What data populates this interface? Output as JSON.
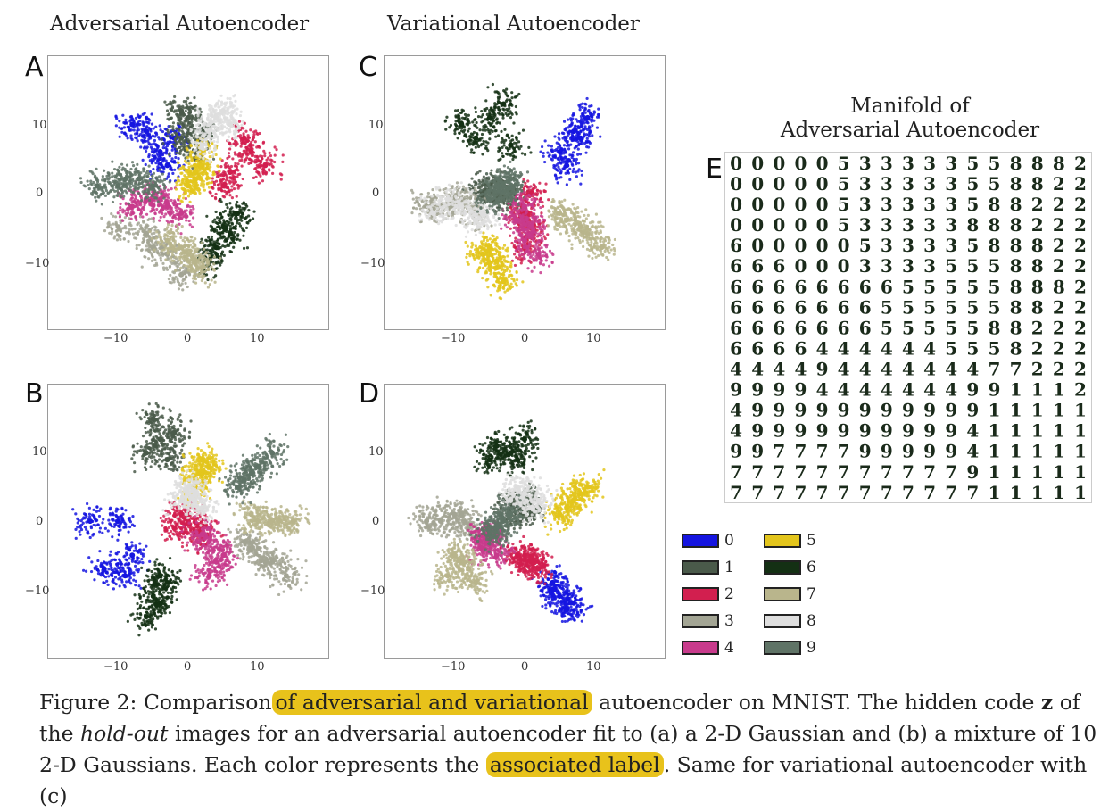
{
  "titles": {
    "adversarial": "Adversarial Autoencoder",
    "variational": "Variational Autoencoder",
    "manifold_line1": "Manifold of",
    "manifold_line2": "Adversarial Autoencoder"
  },
  "panels": {
    "A": "A",
    "B": "B",
    "C": "C",
    "D": "D",
    "E": "E"
  },
  "ticks": {
    "y": [
      "10",
      "0",
      "−10"
    ],
    "x": [
      "−10",
      "0",
      "10"
    ]
  },
  "legend": [
    {
      "label": "0",
      "color": "#1515e0"
    },
    {
      "label": "1",
      "color": "#4a5a4a"
    },
    {
      "label": "2",
      "color": "#d21f4f"
    },
    {
      "label": "3",
      "color": "#a3a594"
    },
    {
      "label": "4",
      "color": "#c83b8c"
    },
    {
      "label": "5",
      "color": "#e3c51c"
    },
    {
      "label": "6",
      "color": "#143014"
    },
    {
      "label": "7",
      "color": "#b9b58c"
    },
    {
      "label": "8",
      "color": "#dedede"
    },
    {
      "label": "9",
      "color": "#5f7366"
    }
  ],
  "manifold_rows": [
    "00000533333558882",
    "00000533333558822",
    "00000533333588222",
    "00000533333888222",
    "60000053333588822",
    "66600033335558822",
    "66666666555558882",
    "66666665555558822",
    "66666665555588222",
    "66664444445558222",
    "44449444444477222",
    "99994444444991112",
    "49999999999911111",
    "49999999999411111",
    "99777799999411111",
    "77777777777911111",
    "77777777777711111"
  ],
  "caption": {
    "p1": "Figure 2: Comparison",
    "h1": "of adversarial and variational",
    "p2": " autoencoder on MNIST. The hidden code ",
    "z": "z",
    "p3": " of the ",
    "holdout": "hold-out",
    "p4": " images for an adversarial autoencoder fit to (a) a 2-D Gaussian and (b) a mixture of 10 2-D Gaussians. Each color represents the ",
    "h2": "associated label",
    "p5": ". Same for variational autoencoder with (c)"
  },
  "chart_data": [
    {
      "type": "scatter",
      "panel": "A",
      "title": "Adversarial Autoencoder",
      "xlim": [
        -20,
        20
      ],
      "ylim": [
        -20,
        20
      ],
      "xticks": [
        -10,
        0,
        10
      ],
      "yticks": [
        -10,
        0,
        10
      ],
      "series": [
        {
          "name": "0",
          "color": "#1515e0",
          "x": [
            -4,
            -6,
            -3,
            -8,
            -2
          ],
          "y": [
            6,
            9,
            4,
            10,
            8
          ]
        },
        {
          "name": "1",
          "color": "#4a5a4a",
          "x": [
            -1,
            0,
            1,
            2,
            -1
          ],
          "y": [
            8,
            11,
            6,
            9,
            12
          ]
        },
        {
          "name": "2",
          "color": "#d21f4f",
          "x": [
            6,
            9,
            5,
            11,
            8
          ],
          "y": [
            3,
            6,
            1,
            4,
            8
          ]
        },
        {
          "name": "3",
          "color": "#a3a594",
          "x": [
            -6,
            -3,
            -10,
            -1,
            -5
          ],
          "y": [
            -6,
            -9,
            -5,
            -12,
            -8
          ]
        },
        {
          "name": "4",
          "color": "#c83b8c",
          "x": [
            -3,
            -6,
            -1,
            -8,
            -4
          ],
          "y": [
            -2,
            -1,
            -3,
            -2,
            -1
          ]
        },
        {
          "name": "5",
          "color": "#e3c51c",
          "x": [
            1,
            2,
            0,
            2,
            1
          ],
          "y": [
            2,
            4,
            1,
            6,
            3
          ]
        },
        {
          "name": "6",
          "color": "#143014",
          "x": [
            5,
            4,
            7,
            3,
            6
          ],
          "y": [
            -5,
            -8,
            -3,
            -10,
            -6
          ]
        },
        {
          "name": "7",
          "color": "#b9b58c",
          "x": [
            -1,
            1,
            -3,
            2,
            0
          ],
          "y": [
            -8,
            -10,
            -7,
            -11,
            -9
          ]
        },
        {
          "name": "8",
          "color": "#dedede",
          "x": [
            3,
            5,
            2,
            6,
            4
          ],
          "y": [
            9,
            12,
            7,
            10,
            11
          ]
        },
        {
          "name": "9",
          "color": "#5f7366",
          "x": [
            -10,
            -7,
            -13,
            -5,
            -9
          ],
          "y": [
            1,
            2,
            1,
            1,
            2
          ]
        }
      ]
    },
    {
      "type": "scatter",
      "panel": "B",
      "xlim": [
        -20,
        20
      ],
      "ylim": [
        -20,
        20
      ],
      "xticks": [
        -10,
        0,
        10
      ],
      "yticks": [
        -10,
        0,
        10
      ],
      "series": [
        {
          "name": "0",
          "color": "#1515e0",
          "x": [
            -10,
            -14,
            -8,
            -12,
            -9
          ],
          "y": [
            0,
            0,
            -5,
            -7,
            -8
          ]
        },
        {
          "name": "1",
          "color": "#4a5a4a",
          "x": [
            -4,
            -5,
            -3,
            -2,
            -6
          ],
          "y": [
            12,
            15,
            9,
            13,
            10
          ]
        },
        {
          "name": "2",
          "color": "#d21f4f",
          "x": [
            -2,
            0,
            1,
            -1,
            2
          ],
          "y": [
            -1,
            0,
            -2,
            1,
            -1
          ]
        },
        {
          "name": "3",
          "color": "#a3a594",
          "x": [
            9,
            12,
            14,
            8,
            11
          ],
          "y": [
            -4,
            -6,
            -8,
            -3,
            -6
          ]
        },
        {
          "name": "4",
          "color": "#c83b8c",
          "x": [
            3,
            4,
            3,
            5,
            2
          ],
          "y": [
            -3,
            -6,
            -8,
            -5,
            -2
          ]
        },
        {
          "name": "5",
          "color": "#e3c51c",
          "x": [
            1,
            2,
            2,
            1,
            3
          ],
          "y": [
            5,
            7,
            9,
            6,
            8
          ]
        },
        {
          "name": "6",
          "color": "#143014",
          "x": [
            -4,
            -5,
            -6,
            -3,
            -4
          ],
          "y": [
            -8,
            -11,
            -14,
            -9,
            -12
          ]
        },
        {
          "name": "7",
          "color": "#b9b58c",
          "x": [
            10,
            13,
            15,
            9,
            12
          ],
          "y": [
            0,
            0,
            0,
            1,
            0
          ]
        },
        {
          "name": "8",
          "color": "#dedede",
          "x": [
            -1,
            1,
            2,
            0,
            1
          ],
          "y": [
            3,
            4,
            2,
            5,
            3
          ]
        },
        {
          "name": "9",
          "color": "#5f7366",
          "x": [
            8,
            10,
            12,
            7,
            9
          ],
          "y": [
            6,
            8,
            10,
            5,
            7
          ]
        }
      ]
    },
    {
      "type": "scatter",
      "panel": "C",
      "title": "Variational Autoencoder",
      "xlim": [
        -20,
        20
      ],
      "ylim": [
        -20,
        20
      ],
      "xticks": [
        -10,
        0,
        10
      ],
      "yticks": [
        -10,
        0,
        10
      ],
      "series": [
        {
          "name": "0",
          "color": "#1515e0",
          "x": [
            5,
            7,
            9,
            6,
            8
          ],
          "y": [
            6,
            9,
            11,
            4,
            8
          ]
        },
        {
          "name": "1",
          "color": "#4a5a4a",
          "x": [
            -6,
            -4,
            -3,
            -5,
            -2
          ],
          "y": [
            0,
            1,
            -1,
            1,
            0
          ]
        },
        {
          "name": "2",
          "color": "#d21f4f",
          "x": [
            0,
            1,
            0,
            1,
            0
          ],
          "y": [
            -3,
            -6,
            -8,
            0,
            -4
          ]
        },
        {
          "name": "3",
          "color": "#a3a594",
          "x": [
            -14,
            -10,
            -7,
            -12,
            -9
          ],
          "y": [
            -2,
            -1,
            -3,
            -2,
            -1
          ]
        },
        {
          "name": "4",
          "color": "#c83b8c",
          "x": [
            -1,
            0,
            2,
            0,
            1
          ],
          "y": [
            -4,
            -7,
            -9,
            -2,
            -5
          ]
        },
        {
          "name": "5",
          "color": "#e3c51c",
          "x": [
            -5,
            -4,
            -3,
            -6,
            -4
          ],
          "y": [
            -8,
            -11,
            -13,
            -9,
            -10
          ]
        },
        {
          "name": "6",
          "color": "#143014",
          "x": [
            -7,
            -5,
            -3,
            -9,
            -2
          ],
          "y": [
            8,
            11,
            13,
            10,
            7
          ]
        },
        {
          "name": "7",
          "color": "#b9b58c",
          "x": [
            6,
            9,
            11,
            5,
            8
          ],
          "y": [
            -4,
            -6,
            -8,
            -3,
            -5
          ]
        },
        {
          "name": "8",
          "color": "#dedede",
          "x": [
            -13,
            -9,
            -7,
            -11,
            -6
          ],
          "y": [
            -3,
            -2,
            -4,
            -1,
            -3
          ]
        },
        {
          "name": "9",
          "color": "#5f7366",
          "x": [
            -4,
            -3,
            -2,
            -5,
            -3
          ],
          "y": [
            1,
            0,
            2,
            -1,
            1
          ]
        }
      ]
    },
    {
      "type": "scatter",
      "panel": "D",
      "xlim": [
        -20,
        20
      ],
      "ylim": [
        -20,
        20
      ],
      "xticks": [
        -10,
        0,
        10
      ],
      "yticks": [
        -10,
        0,
        10
      ],
      "series": [
        {
          "name": "0",
          "color": "#1515e0",
          "x": [
            4,
            5,
            6,
            4,
            7
          ],
          "y": [
            -9,
            -11,
            -13,
            -10,
            -12
          ]
        },
        {
          "name": "1",
          "color": "#4a5a4a",
          "x": [
            -2,
            -1,
            0,
            -1,
            1
          ],
          "y": [
            2,
            1,
            3,
            2,
            1
          ]
        },
        {
          "name": "2",
          "color": "#d21f4f",
          "x": [
            -1,
            1,
            2,
            0,
            1
          ],
          "y": [
            -5,
            -6,
            -7,
            -5,
            -6
          ]
        },
        {
          "name": "3",
          "color": "#a3a594",
          "x": [
            -14,
            -10,
            -8,
            -12,
            -9
          ],
          "y": [
            0,
            1,
            -1,
            0,
            1
          ]
        },
        {
          "name": "4",
          "color": "#c83b8c",
          "x": [
            -6,
            -5,
            -4,
            -6,
            -5
          ],
          "y": [
            -2,
            -3,
            -5,
            -4,
            -2
          ]
        },
        {
          "name": "5",
          "color": "#e3c51c",
          "x": [
            6,
            8,
            5,
            7,
            9
          ],
          "y": [
            2,
            4,
            1,
            3,
            5
          ]
        },
        {
          "name": "6",
          "color": "#143014",
          "x": [
            -5,
            -2,
            0,
            -4,
            -1
          ],
          "y": [
            9,
            10,
            12,
            11,
            9
          ]
        },
        {
          "name": "7",
          "color": "#b9b58c",
          "x": [
            -10,
            -8,
            -11,
            -9,
            -7
          ],
          "y": [
            -5,
            -7,
            -8,
            -6,
            -9
          ]
        },
        {
          "name": "8",
          "color": "#dedede",
          "x": [
            -2,
            0,
            1,
            -1,
            2
          ],
          "y": [
            3,
            4,
            2,
            5,
            3
          ]
        },
        {
          "name": "9",
          "color": "#5f7366",
          "x": [
            -4,
            -3,
            -5,
            -2,
            -4
          ],
          "y": [
            -1,
            0,
            -2,
            1,
            -1
          ]
        }
      ]
    }
  ]
}
